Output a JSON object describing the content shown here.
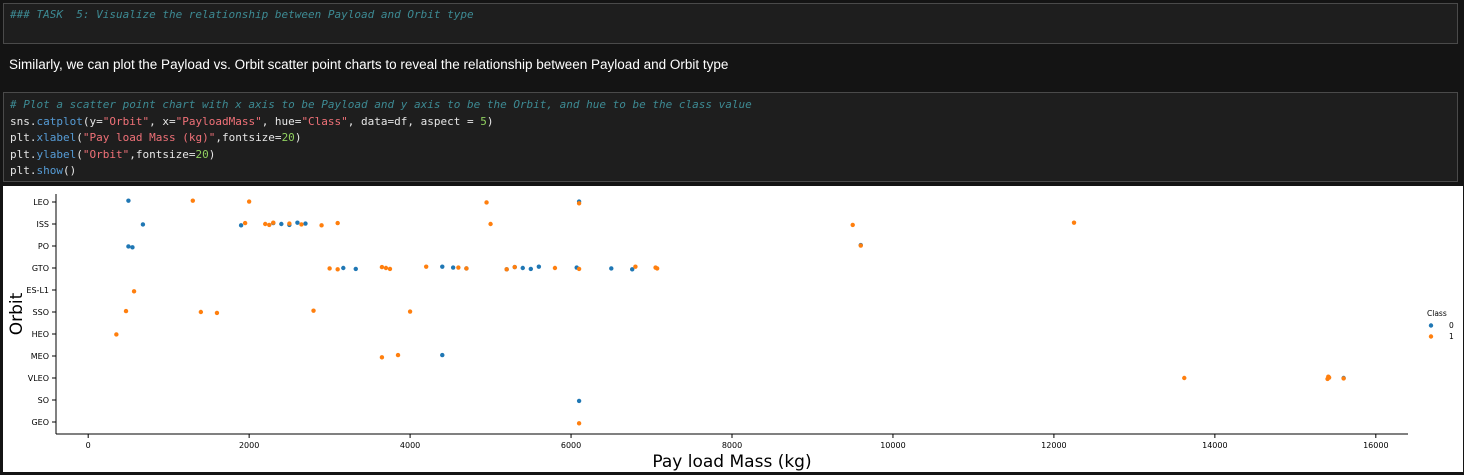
{
  "markdown_cell": {
    "source": "### TASK  5: Visualize the relationship between Payload and Orbit type"
  },
  "description": "Similarly, we can plot the Payload vs. Orbit scatter point charts to reveal the relationship between Payload and Orbit type",
  "code_cell": {
    "comment": "# Plot a scatter point chart with x axis to be Payload and y axis to be the Orbit, and hue to be the class value",
    "line2": {
      "a": "sns.",
      "fn": "catplot",
      "b": "(y=",
      "s1": "\"Orbit\"",
      "c": ", x=",
      "s2": "\"PayloadMass\"",
      "d": ", hue=",
      "s3": "\"Class\"",
      "e": ", data=df, aspect = ",
      "n": "5",
      "f": ")"
    },
    "line3": {
      "a": "plt.",
      "fn": "xlabel",
      "b": "(",
      "s1": "\"Pay load Mass (kg)\"",
      "c": ",fontsize=",
      "n": "20",
      "d": ")"
    },
    "line4": {
      "a": "plt.",
      "fn": "ylabel",
      "b": "(",
      "s1": "\"Orbit\"",
      "c": ",fontsize=",
      "n": "20",
      "d": ")"
    },
    "line5": {
      "a": "plt.",
      "fn": "show",
      "b": "()"
    }
  },
  "chart_data": {
    "type": "scatter",
    "xlabel": "Pay load Mass (kg)",
    "ylabel": "Orbit",
    "xlim": [
      -400,
      16400
    ],
    "xticks": [
      0,
      2000,
      4000,
      6000,
      8000,
      10000,
      12000,
      14000,
      16000
    ],
    "categories": [
      "LEO",
      "ISS",
      "PO",
      "GTO",
      "ES-L1",
      "SSO",
      "HEO",
      "MEO",
      "VLEO",
      "SO",
      "GEO"
    ],
    "legend": {
      "title": "Class",
      "placement": "right",
      "entries": [
        "0",
        "1"
      ]
    },
    "colors": {
      "0": "#1f77b4",
      "1": "#ff7f0e"
    },
    "series": [
      {
        "name": "0",
        "points": [
          [
            "LEO",
            500
          ],
          [
            "LEO",
            6100
          ],
          [
            "ISS",
            680
          ],
          [
            "ISS",
            1900
          ],
          [
            "ISS",
            2300
          ],
          [
            "ISS",
            2400
          ],
          [
            "ISS",
            2500
          ],
          [
            "ISS",
            2600
          ],
          [
            "ISS",
            2700
          ],
          [
            "PO",
            500
          ],
          [
            "PO",
            550
          ],
          [
            "PO",
            9600
          ],
          [
            "GTO",
            3170
          ],
          [
            "GTO",
            3325
          ],
          [
            "GTO",
            4400
          ],
          [
            "GTO",
            4535
          ],
          [
            "GTO",
            4700
          ],
          [
            "GTO",
            5200
          ],
          [
            "GTO",
            5300
          ],
          [
            "GTO",
            5400
          ],
          [
            "GTO",
            5500
          ],
          [
            "GTO",
            5600
          ],
          [
            "GTO",
            6070
          ],
          [
            "GTO",
            6500
          ],
          [
            "GTO",
            6760
          ],
          [
            "MEO",
            4400
          ],
          [
            "VLEO",
            15600
          ],
          [
            "SO",
            6100
          ]
        ]
      },
      {
        "name": "1",
        "points": [
          [
            "LEO",
            1300
          ],
          [
            "LEO",
            2000
          ],
          [
            "LEO",
            4950
          ],
          [
            "LEO",
            6100
          ],
          [
            "ISS",
            1950
          ],
          [
            "ISS",
            2200
          ],
          [
            "ISS",
            2250
          ],
          [
            "ISS",
            2300
          ],
          [
            "ISS",
            2500
          ],
          [
            "ISS",
            2650
          ],
          [
            "ISS",
            2900
          ],
          [
            "ISS",
            3100
          ],
          [
            "ISS",
            5000
          ],
          [
            "ISS",
            9500
          ],
          [
            "ISS",
            12250
          ],
          [
            "PO",
            9600
          ],
          [
            "GTO",
            3000
          ],
          [
            "GTO",
            3100
          ],
          [
            "GTO",
            3650
          ],
          [
            "GTO",
            3700
          ],
          [
            "GTO",
            3750
          ],
          [
            "GTO",
            4200
          ],
          [
            "GTO",
            4600
          ],
          [
            "GTO",
            4700
          ],
          [
            "GTO",
            5200
          ],
          [
            "GTO",
            5300
          ],
          [
            "GTO",
            5800
          ],
          [
            "GTO",
            6100
          ],
          [
            "GTO",
            6800
          ],
          [
            "GTO",
            7050
          ],
          [
            "GTO",
            7070
          ],
          [
            "ES-L1",
            570
          ],
          [
            "SSO",
            470
          ],
          [
            "SSO",
            1400
          ],
          [
            "SSO",
            1600
          ],
          [
            "SSO",
            2800
          ],
          [
            "SSO",
            4000
          ],
          [
            "HEO",
            350
          ],
          [
            "MEO",
            3650
          ],
          [
            "MEO",
            3850
          ],
          [
            "VLEO",
            13620
          ],
          [
            "VLEO",
            15400
          ],
          [
            "VLEO",
            15410
          ],
          [
            "VLEO",
            15420
          ],
          [
            "VLEO",
            15600
          ],
          [
            "GEO",
            6100
          ]
        ]
      }
    ]
  }
}
